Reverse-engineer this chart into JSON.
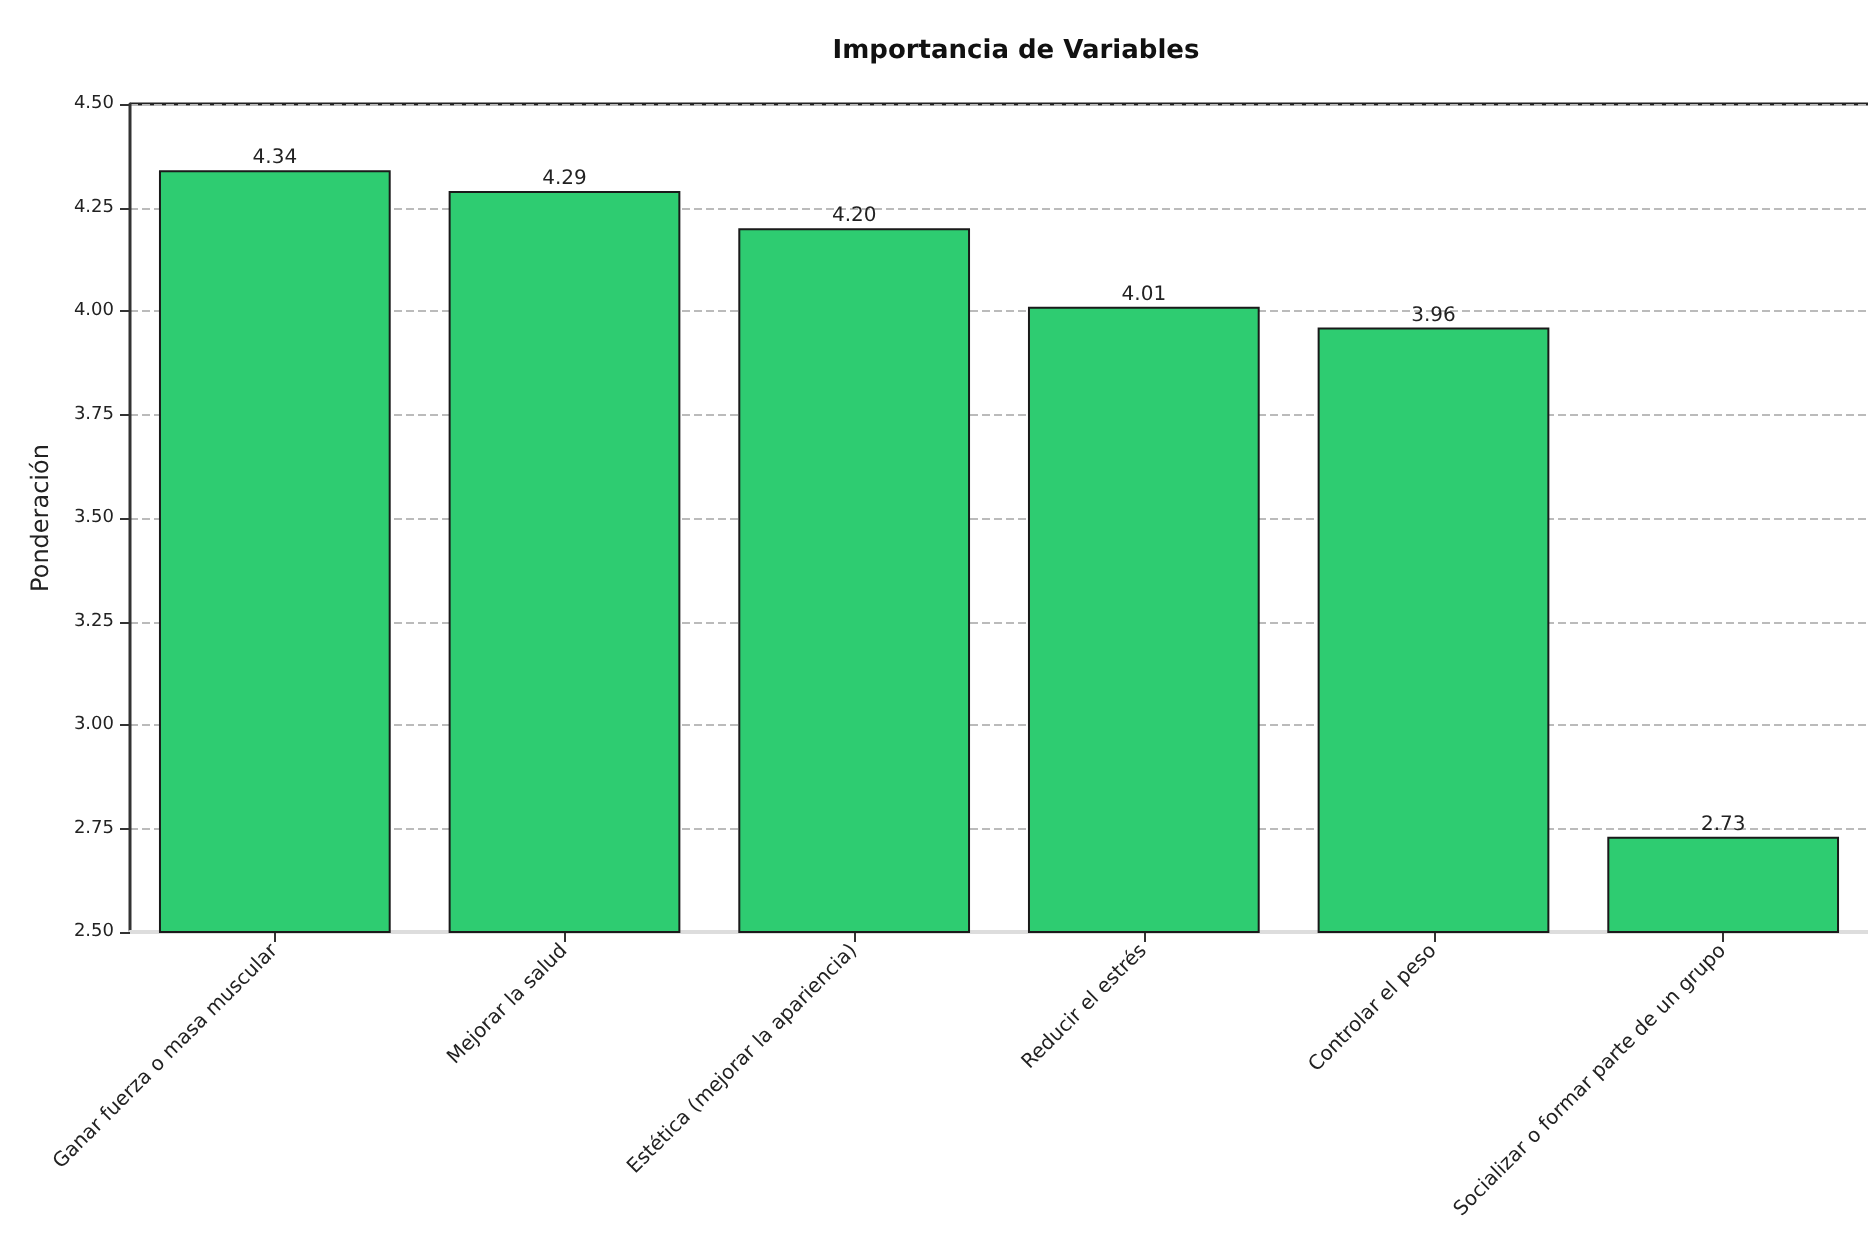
{
  "chart_data": {
    "type": "bar",
    "title": "Importancia de Variables",
    "ylabel": "Ponderación",
    "categories": [
      "Ganar fuerza o masa muscular",
      "Mejorar la salud",
      "Estética (mejorar la apariencia)",
      "Reducir el estrés",
      "Controlar el peso",
      "Socializar o formar parte de un grupo"
    ],
    "values": [
      4.34,
      4.29,
      4.2,
      4.01,
      3.96,
      2.73
    ],
    "color": "#2ecc71",
    "ylim": [
      2.5,
      4.5
    ],
    "yticks": [
      {
        "value": 2.5,
        "label": "2.50"
      },
      {
        "value": 2.75,
        "label": "2.75"
      },
      {
        "value": 3.0,
        "label": "3.00"
      },
      {
        "value": 3.25,
        "label": "3.25"
      },
      {
        "value": 3.5,
        "label": "3.50"
      },
      {
        "value": 3.75,
        "label": "3.75"
      },
      {
        "value": 4.0,
        "label": "4.00"
      },
      {
        "value": 4.25,
        "label": "4.25"
      },
      {
        "value": 4.5,
        "label": "4.50"
      }
    ],
    "value_labels": [
      "4.34",
      "4.29",
      "4.20",
      "4.01",
      "3.96",
      "2.73"
    ],
    "grid": "y"
  }
}
